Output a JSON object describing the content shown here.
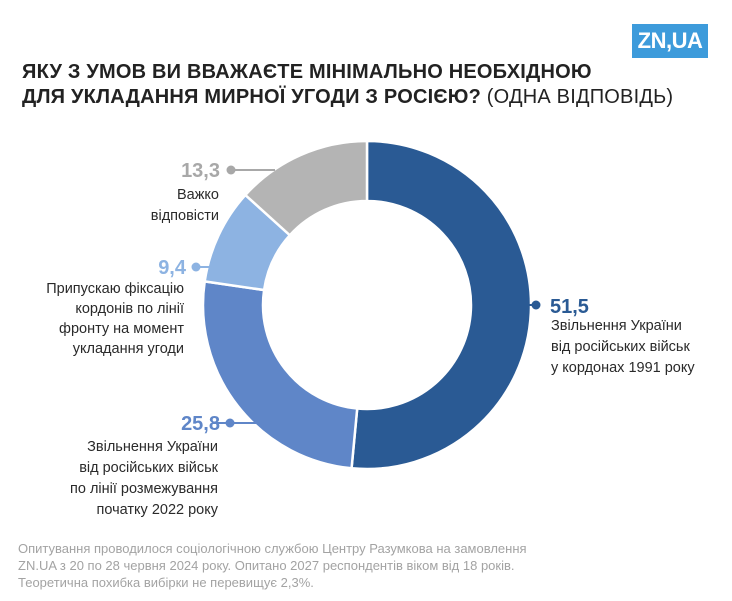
{
  "logo": "ZN,UA",
  "title": {
    "line1": "ЯКУ З УМОВ ВИ ВВАЖАЄТЕ МІНІМАЛЬНО НЕОБХІДНОЮ",
    "line2_bold": "ДЛЯ УКЛАДАННЯ МИРНОЇ УГОДИ З РОСІЄЮ?",
    "line2_normal": "(ОДНА ВІДПОВІДЬ)"
  },
  "chart_data": {
    "type": "pie",
    "donut": true,
    "slices": [
      {
        "value": 51.5,
        "value_label": "51,5",
        "label_lines": [
          "Звільнення України",
          "від російських військ",
          "у кордонах 1991 року"
        ],
        "color": "#2a5a94",
        "value_color": "#2a5a94"
      },
      {
        "value": 25.8,
        "value_label": "25,8",
        "label_lines": [
          "Звільнення України",
          "від російських військ",
          "по лінії розмежування",
          "початку 2022 року"
        ],
        "color": "#5f86c8",
        "value_color": "#5f86c8"
      },
      {
        "value": 9.4,
        "value_label": "9,4",
        "label_lines": [
          "Припускаю фіксацію",
          "кордонів по лінії",
          "фронту на момент",
          "укладання угоди"
        ],
        "color": "#8db3e2",
        "value_color": "#8db3e2"
      },
      {
        "value": 13.3,
        "value_label": "13,3",
        "label_lines": [
          "Важко",
          "відповісти"
        ],
        "color": "#b4b4b4",
        "value_color": "#a8a8a8"
      }
    ]
  },
  "footnote": {
    "line1": "Опитування проводилося  соціологічною службою Центру Разумкова на замовлення",
    "line2": "ZN.UA з 20 по 28 червня 2024 року. Опитано 2027 респондентів віком від 18 років.",
    "line3": "Теоретична похибка вибірки не перевищує 2,3%."
  }
}
